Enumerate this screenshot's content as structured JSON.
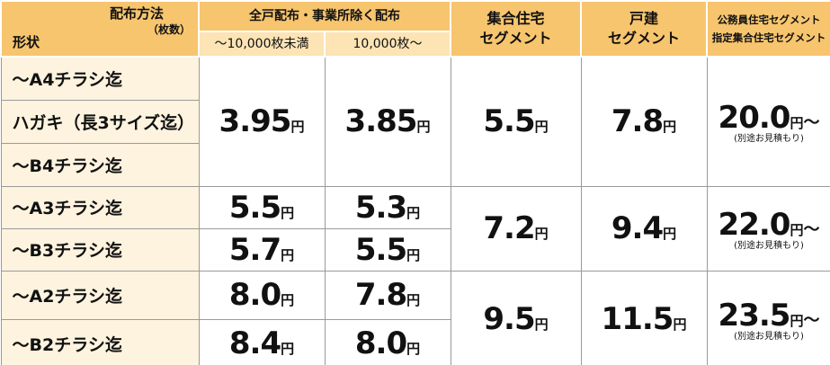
{
  "header": {
    "method": "配布方法",
    "count": "（枚数）",
    "shape": "形状",
    "all": "全戸配布・事業所除く配布",
    "under": "～10,000枚未満",
    "over": "10,000枚～",
    "apartment": [
      "集合住宅",
      "セグメント"
    ],
    "house": [
      "戸建",
      "セグメント"
    ],
    "public": [
      "公務員住宅セグメント",
      "指定集合住宅セグメント"
    ]
  },
  "groups": [
    {
      "shapes": [
        "～A4チラシ迄",
        "ハガキ（長3サイズ迄）",
        "～B4チラシ迄"
      ],
      "under": [
        {
          "value": "3.95",
          "unit": "円"
        }
      ],
      "over": [
        {
          "value": "3.85",
          "unit": "円"
        }
      ],
      "apartment": {
        "value": "5.5",
        "unit": "円"
      },
      "house": {
        "value": "7.8",
        "unit": "円"
      },
      "public": {
        "value": "20.0",
        "unit": "円",
        "suffix": "～",
        "note": "(別途お見積もり)"
      }
    },
    {
      "shapes": [
        "～A3チラシ迄",
        "～B3チラシ迄"
      ],
      "under": [
        {
          "value": "5.5",
          "unit": "円"
        },
        {
          "value": "5.7",
          "unit": "円"
        }
      ],
      "over": [
        {
          "value": "5.3",
          "unit": "円"
        },
        {
          "value": "5.5",
          "unit": "円"
        }
      ],
      "apartment": {
        "value": "7.2",
        "unit": "円"
      },
      "house": {
        "value": "9.4",
        "unit": "円"
      },
      "public": {
        "value": "22.0",
        "unit": "円",
        "suffix": "～",
        "note": "(別途お見積もり)"
      }
    },
    {
      "shapes": [
        "～A2チラシ迄",
        "～B2チラシ迄"
      ],
      "under": [
        {
          "value": "8.0",
          "unit": "円"
        },
        {
          "value": "8.4",
          "unit": "円"
        }
      ],
      "over": [
        {
          "value": "7.8",
          "unit": "円"
        },
        {
          "value": "8.0",
          "unit": "円"
        }
      ],
      "apartment": {
        "value": "9.5",
        "unit": "円"
      },
      "house": {
        "value": "11.5",
        "unit": "円"
      },
      "public": {
        "value": "23.5",
        "unit": "円",
        "suffix": "～",
        "note": "(別途お見積もり)"
      }
    }
  ]
}
